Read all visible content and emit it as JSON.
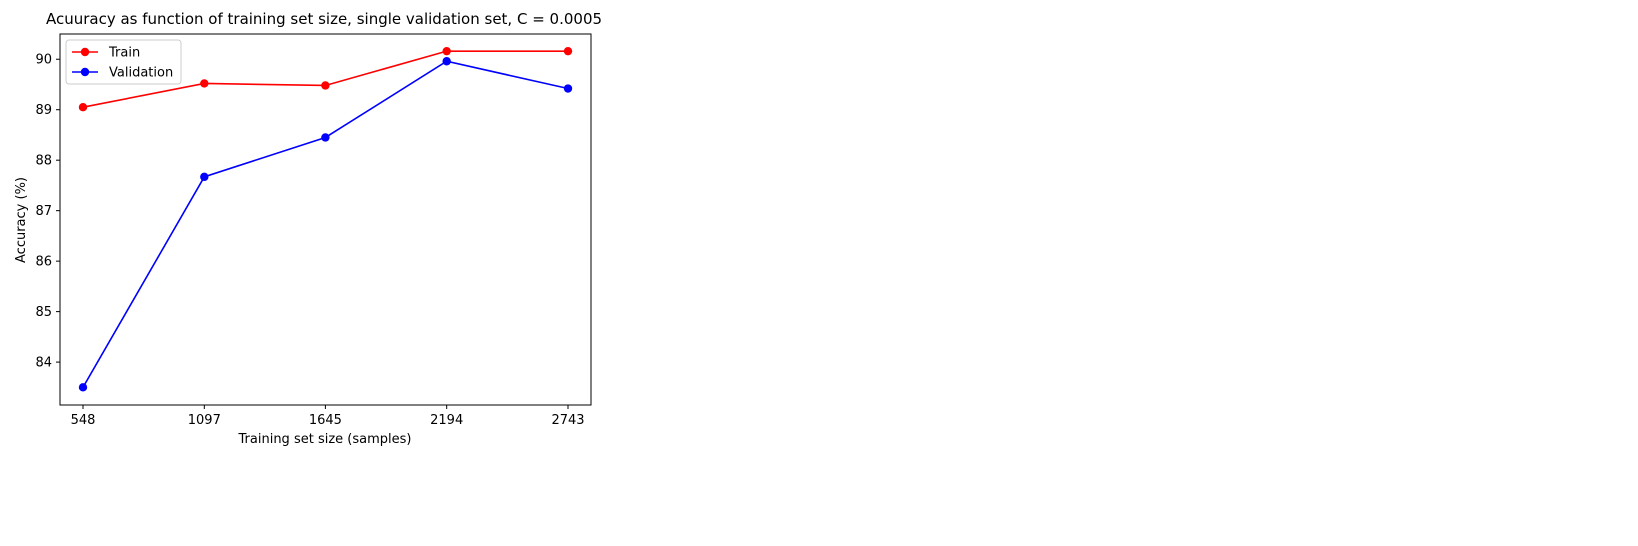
{
  "chart_data": {
    "type": "line",
    "title": "Acuuracy as function of training set size, single validation set, C = 0.0005",
    "xlabel": "Training set size (samples)",
    "ylabel": "Accuracy (%)",
    "x": [
      548,
      1097,
      1645,
      2194,
      2743
    ],
    "x_tick_labels": [
      "548",
      "1097",
      "1645",
      "2194",
      "2743"
    ],
    "y_ticks": [
      84,
      85,
      86,
      87,
      88,
      89,
      90
    ],
    "ylim": [
      83.15,
      90.5
    ],
    "series": [
      {
        "name": "Train",
        "color": "#ff0000",
        "marker": "circle",
        "values": [
          89.05,
          89.52,
          89.48,
          90.16,
          90.16
        ]
      },
      {
        "name": "Validation",
        "color": "#0000ff",
        "marker": "circle",
        "values": [
          83.5,
          87.67,
          88.45,
          89.96,
          89.42
        ]
      }
    ],
    "legend_position": "upper-left",
    "grid": false
  }
}
